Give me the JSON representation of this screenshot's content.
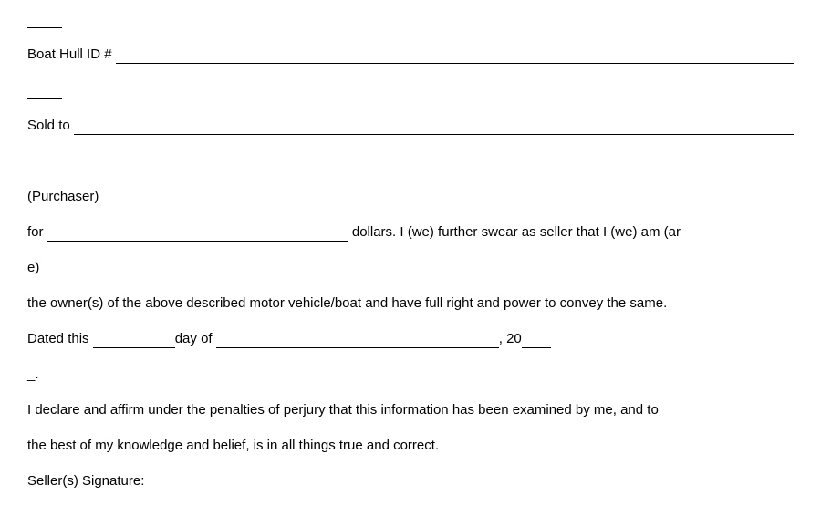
{
  "fields": {
    "boat_hull_label": "Boat Hull ID #",
    "sold_to_label": "Sold to",
    "purchaser_label": "(Purchaser)",
    "for_label": "for",
    "dollars_text": " dollars. I (we) further swear as seller that I (we) am (ar",
    "e_text": "e)",
    "owner_text": "the owner(s) of the above described motor vehicle/boat and have full right and power to convey the same.",
    "dated_label": "Dated this ",
    "day_of_label": "day of ",
    "year_prefix": ", 20",
    "dash_period": "_.",
    "declare_line1": "I declare and affirm under the penalties of perjury that this information has been examined by me, and to",
    "declare_line2": "the best of my knowledge and belief, is in all things true and correct.",
    "signature_label": "Seller(s) Signature: "
  },
  "widths": {
    "for_blank": 330,
    "dated_day": 90,
    "dated_month": 310,
    "year_blank": 32
  },
  "style": {
    "font_size": 15,
    "text_color": "#000000",
    "background_color": "#ffffff",
    "line_spacing": 18
  }
}
